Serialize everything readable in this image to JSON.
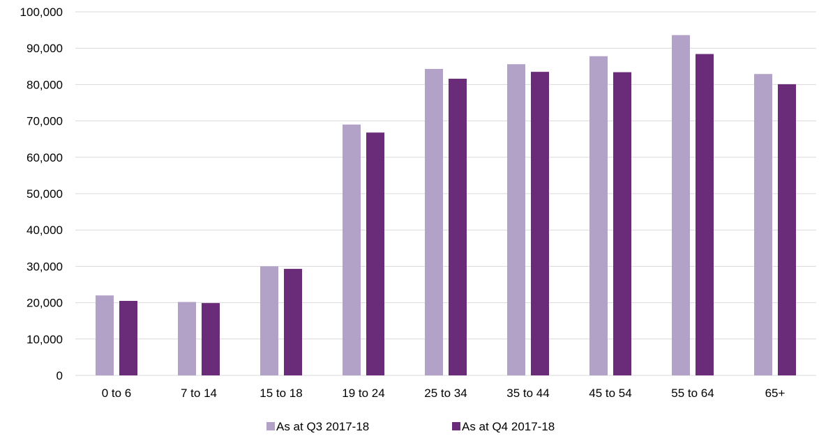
{
  "chart_data": {
    "type": "bar",
    "title": "",
    "xlabel": "",
    "ylabel": "",
    "categories": [
      "0 to 6",
      "7 to 14",
      "15 to 18",
      "19 to 24",
      "25 to 34",
      "35 to 44",
      "45 to 54",
      "55 to 64",
      "65+"
    ],
    "series": [
      {
        "name": "As at Q3 2017-18",
        "color": "#b3a2c8",
        "values": [
          22000,
          20200,
          30000,
          69000,
          84300,
          85600,
          87800,
          93600,
          82900
        ]
      },
      {
        "name": "As at Q4 2017-18",
        "color": "#6a2c78",
        "values": [
          20500,
          19900,
          29300,
          66800,
          81600,
          83500,
          83400,
          88400,
          80100
        ]
      }
    ],
    "ylim": [
      0,
      100000
    ],
    "yticks": [
      0,
      10000,
      20000,
      30000,
      40000,
      50000,
      60000,
      70000,
      80000,
      90000,
      100000
    ],
    "ytick_labels": [
      "0",
      "10,000",
      "20,000",
      "30,000",
      "40,000",
      "50,000",
      "60,000",
      "70,000",
      "80,000",
      "90,000",
      "100,000"
    ],
    "grid": true,
    "legend_position": "bottom-center"
  }
}
